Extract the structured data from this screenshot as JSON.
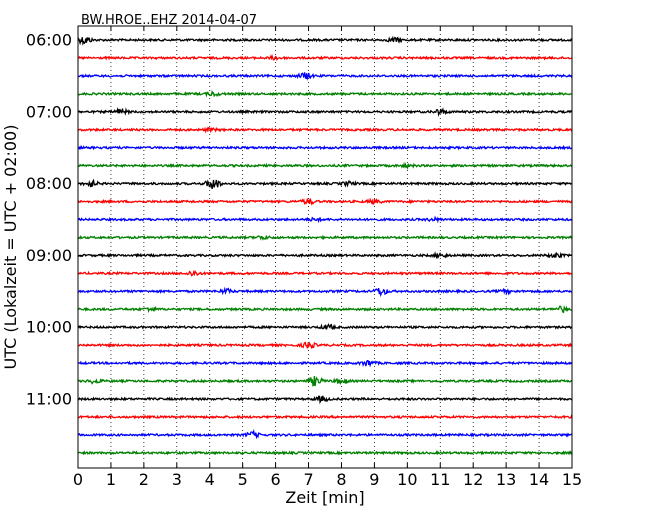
{
  "chart_data": {
    "type": "line",
    "title": "BW.HROE..EHZ 2014-04-07",
    "xlabel": "Zeit  [min]",
    "ylabel": "UTC (Lokalzeit = UTC + 02:00)",
    "xlim": [
      0,
      15
    ],
    "x_ticks": [
      0,
      1,
      2,
      3,
      4,
      5,
      6,
      7,
      8,
      9,
      10,
      11,
      12,
      13,
      14,
      15
    ],
    "x_tick_labels": [
      "0",
      "1",
      "2",
      "3",
      "4",
      "5",
      "6",
      "7",
      "8",
      "9",
      "10",
      "11",
      "12",
      "13",
      "14",
      "15"
    ],
    "vertical_grid": "dotted, every minute",
    "trace_interval_minutes": 15,
    "color_cycle": [
      "#000000",
      "#ff0000",
      "#0000ff",
      "#008000"
    ],
    "y_tick_labels": [
      {
        "trace_index": 0,
        "label": "06:00"
      },
      {
        "trace_index": 4,
        "label": "07:00"
      },
      {
        "trace_index": 8,
        "label": "08:00"
      },
      {
        "trace_index": 12,
        "label": "09:00"
      },
      {
        "trace_index": 16,
        "label": "10:00"
      },
      {
        "trace_index": 20,
        "label": "11:00"
      }
    ],
    "traces": [
      {
        "start": "06:00",
        "color": "#000000",
        "events": [
          {
            "x": 0.2,
            "amp": 1.6
          },
          {
            "x": 9.6,
            "amp": 0.8
          }
        ]
      },
      {
        "start": "06:15",
        "color": "#ff0000",
        "events": [
          {
            "x": 6.0,
            "amp": 0.6
          }
        ]
      },
      {
        "start": "06:30",
        "color": "#0000ff",
        "events": [
          {
            "x": 6.9,
            "amp": 1.2
          }
        ]
      },
      {
        "start": "06:45",
        "color": "#008000",
        "events": [
          {
            "x": 4.1,
            "amp": 0.7
          }
        ]
      },
      {
        "start": "07:00",
        "color": "#000000",
        "events": [
          {
            "x": 1.3,
            "amp": 1.0
          },
          {
            "x": 11.0,
            "amp": 1.0
          }
        ]
      },
      {
        "start": "07:15",
        "color": "#ff0000",
        "events": [
          {
            "x": 4.0,
            "amp": 0.5
          }
        ]
      },
      {
        "start": "07:30",
        "color": "#0000ff",
        "events": []
      },
      {
        "start": "07:45",
        "color": "#008000",
        "events": [
          {
            "x": 10.0,
            "amp": 0.5
          }
        ]
      },
      {
        "start": "08:00",
        "color": "#000000",
        "events": [
          {
            "x": 0.4,
            "amp": 1.2
          },
          {
            "x": 4.1,
            "amp": 2.4
          },
          {
            "x": 8.2,
            "amp": 0.7
          }
        ]
      },
      {
        "start": "08:15",
        "color": "#ff0000",
        "events": [
          {
            "x": 7.0,
            "amp": 1.0
          },
          {
            "x": 9.0,
            "amp": 0.8
          }
        ]
      },
      {
        "start": "08:30",
        "color": "#0000ff",
        "events": [
          {
            "x": 7.2,
            "amp": 0.5
          },
          {
            "x": 10.8,
            "amp": 0.5
          }
        ]
      },
      {
        "start": "08:45",
        "color": "#008000",
        "events": [
          {
            "x": 5.6,
            "amp": 0.6
          }
        ]
      },
      {
        "start": "09:00",
        "color": "#000000",
        "events": [
          {
            "x": 11.0,
            "amp": 0.8
          },
          {
            "x": 14.5,
            "amp": 0.8
          }
        ]
      },
      {
        "start": "09:15",
        "color": "#ff0000",
        "events": [
          {
            "x": 3.5,
            "amp": 0.9
          }
        ]
      },
      {
        "start": "09:30",
        "color": "#0000ff",
        "events": [
          {
            "x": 4.5,
            "amp": 0.8
          },
          {
            "x": 9.2,
            "amp": 1.5
          },
          {
            "x": 13.0,
            "amp": 0.5
          }
        ]
      },
      {
        "start": "09:45",
        "color": "#008000",
        "events": [
          {
            "x": 2.2,
            "amp": 0.6
          },
          {
            "x": 14.7,
            "amp": 1.0
          }
        ]
      },
      {
        "start": "10:00",
        "color": "#000000",
        "events": [
          {
            "x": 7.6,
            "amp": 0.9
          }
        ]
      },
      {
        "start": "10:15",
        "color": "#ff0000",
        "events": [
          {
            "x": 7.0,
            "amp": 1.2
          }
        ]
      },
      {
        "start": "10:30",
        "color": "#0000ff",
        "events": [
          {
            "x": 8.8,
            "amp": 1.1
          }
        ]
      },
      {
        "start": "10:45",
        "color": "#008000",
        "events": [
          {
            "x": 0.5,
            "amp": 0.7
          },
          {
            "x": 7.2,
            "amp": 1.8
          },
          {
            "x": 8.0,
            "amp": 1.0
          }
        ]
      },
      {
        "start": "11:00",
        "color": "#000000",
        "events": [
          {
            "x": 7.4,
            "amp": 1.0
          }
        ]
      },
      {
        "start": "11:15",
        "color": "#ff0000",
        "events": []
      },
      {
        "start": "11:30",
        "color": "#0000ff",
        "events": [
          {
            "x": 5.3,
            "amp": 1.1
          }
        ]
      },
      {
        "start": "11:45",
        "color": "#008000",
        "events": []
      }
    ]
  }
}
